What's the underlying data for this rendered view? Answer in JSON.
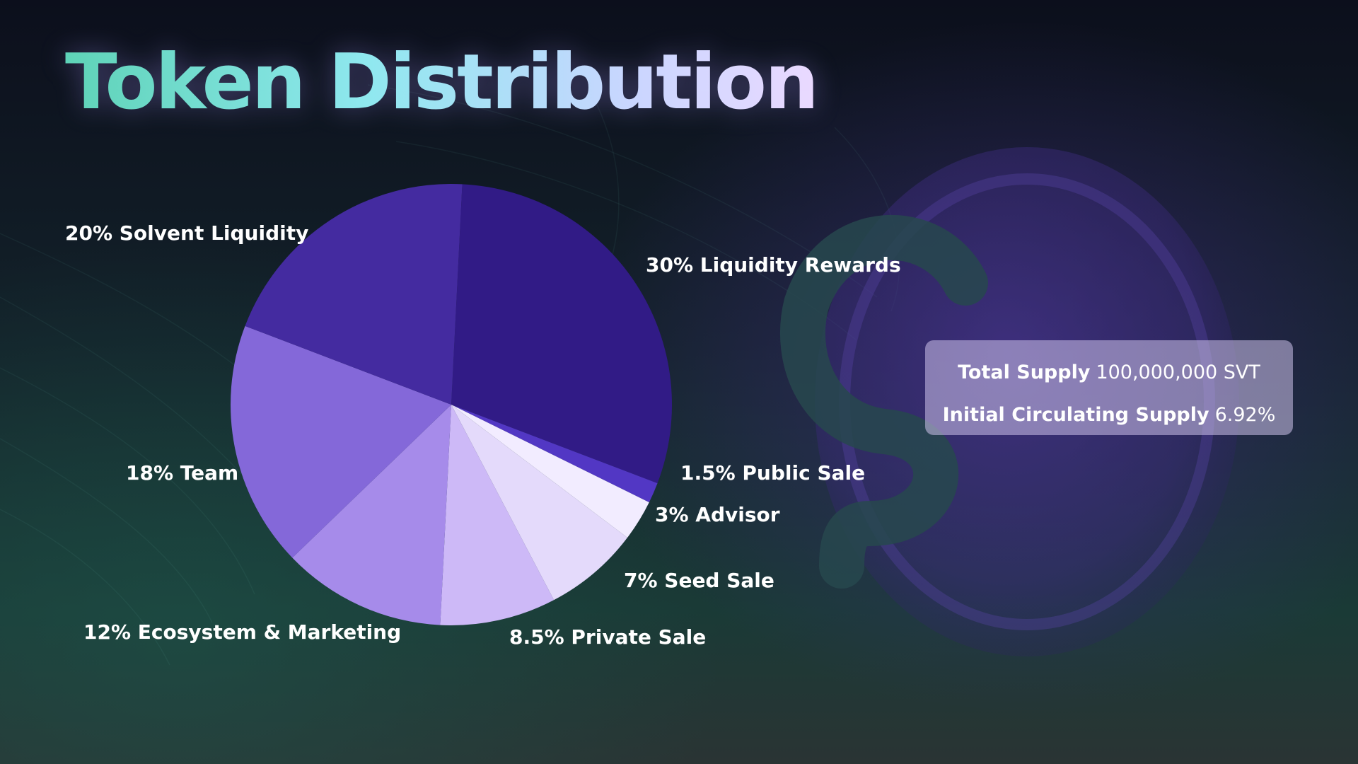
{
  "title": "Token Distribution",
  "supply": {
    "total_label": "Total Supply",
    "total_value": "100,000,000 SVT",
    "circulating_label": "Initial Circulating Supply",
    "circulating_value": "6.92%"
  },
  "chart_data": {
    "type": "pie",
    "title": "Token Distribution",
    "start": "12 o'clock",
    "direction": "clockwise",
    "slices": [
      {
        "label": "30% Liquidity Rewards",
        "value": 30,
        "color": "#311b86"
      },
      {
        "label": "1.5% Public Sale",
        "value": 1.5,
        "color": "#5237c4"
      },
      {
        "label": "3% Advisor",
        "value": 3,
        "color": "#f2ecff"
      },
      {
        "label": "7% Seed Sale",
        "value": 7,
        "color": "#e4dafb"
      },
      {
        "label": "8.5% Private Sale",
        "value": 8.5,
        "color": "#cdb9f7"
      },
      {
        "label": "12% Ecosystem & Marketing",
        "value": 12,
        "color": "#a68bea"
      },
      {
        "label": "18% Team",
        "value": 18,
        "color": "#8468d9"
      },
      {
        "label": "20% Solvent Liquidity",
        "value": 20,
        "color": "#442ba0"
      }
    ]
  },
  "colors": {
    "title_gradient": [
      "#5ed3b7",
      "#8fe8ef",
      "#c9d6ff",
      "#ead9ff"
    ],
    "background_top": "#0c0f1c",
    "background_bottom": "#2a3434",
    "coin": "#3a2a7a",
    "coin_logo": "#27484e"
  },
  "icons": {
    "coin": "solvent-coin-icon"
  }
}
